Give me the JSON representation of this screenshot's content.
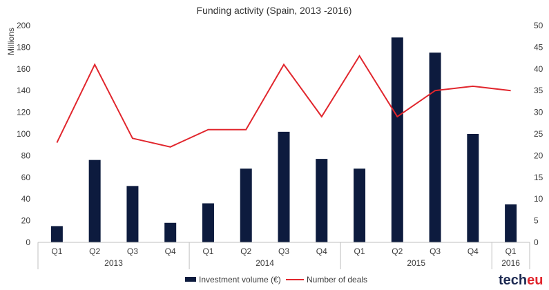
{
  "chart_data": {
    "type": "bar",
    "title": "Funding activity (Spain, 2013 -2016)",
    "ylabel": "Millions",
    "ylim": [
      0,
      200
    ],
    "y2lim": [
      0,
      50
    ],
    "yticks": [
      "0",
      "20",
      "40",
      "60",
      "80",
      "100",
      "120",
      "140",
      "160",
      "180",
      "200"
    ],
    "y2ticks": [
      "0",
      "5",
      "10",
      "15",
      "20",
      "25",
      "30",
      "35",
      "40",
      "45",
      "50"
    ],
    "categories": [
      "Q1",
      "Q2",
      "Q3",
      "Q4",
      "Q1",
      "Q2",
      "Q3",
      "Q4",
      "Q1",
      "Q2",
      "Q3",
      "Q4",
      "Q1"
    ],
    "groups": [
      {
        "label": "2013",
        "span": 4
      },
      {
        "label": "2014",
        "span": 4
      },
      {
        "label": "2015",
        "span": 4
      },
      {
        "label": "2016",
        "span": 1
      }
    ],
    "series": [
      {
        "name": "Investment volume (€)",
        "type": "bar",
        "axis": "left",
        "color": "#0d1b3e",
        "values": [
          15,
          76,
          52,
          18,
          36,
          68,
          102,
          77,
          68,
          189,
          175,
          100,
          35
        ]
      },
      {
        "name": "Number of deals",
        "type": "line",
        "axis": "right",
        "color": "#e1262d",
        "values": [
          23,
          41,
          24,
          22,
          26,
          26,
          41,
          29,
          43,
          29,
          35,
          36,
          35
        ]
      }
    ],
    "grid": false,
    "legend": "bottom"
  },
  "logo": {
    "part1": "tech",
    "part2": "eu"
  }
}
